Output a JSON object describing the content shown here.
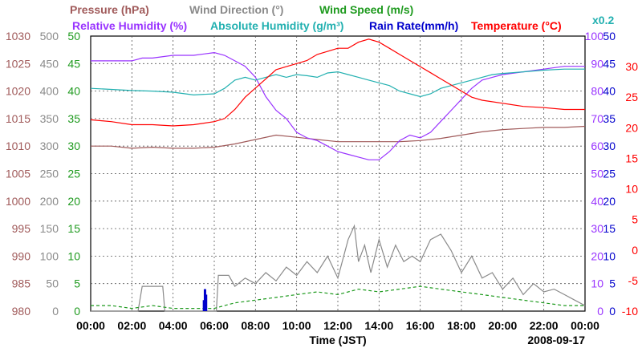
{
  "legend_top": [
    {
      "text": "Pressure (hPa)",
      "color": "#a05a5a"
    },
    {
      "text": "Wind Direction (°)",
      "color": "#8a8a8a"
    },
    {
      "text": "Wind Speed (m/s)",
      "color": "#1e9a1e"
    }
  ],
  "legend_bottom": [
    {
      "text": "Relative Humidity (%)",
      "color": "#9933ff"
    },
    {
      "text": "Absolute Humidity (g/m³)",
      "color": "#22b0b0"
    },
    {
      "text": "Rain Rate(mm/h)",
      "color": "#0000cc"
    },
    {
      "text": "Temperature (°C)",
      "color": "#ff0000"
    }
  ],
  "scale_note": {
    "text": "x0.2",
    "color": "#22b0b0"
  },
  "date": "2008-09-17",
  "chart_data": {
    "type": "line",
    "xlabel": "Time (JST)",
    "x_ticks": [
      "00:00",
      "02:00",
      "04:00",
      "06:00",
      "08:00",
      "10:00",
      "12:00",
      "14:00",
      "16:00",
      "18:00",
      "20:00",
      "22:00",
      "00:00"
    ],
    "xlim_hours": [
      0,
      24
    ],
    "grid": true,
    "axes": {
      "pressure": {
        "ticks": [
          "1030",
          "1025",
          "1020",
          "1015",
          "1010",
          "1005",
          "1000",
          "995",
          "990",
          "985",
          "980"
        ],
        "range": [
          980,
          1030
        ],
        "color": "#a05a5a"
      },
      "wind_direction": {
        "ticks": [
          "500",
          "450",
          "400",
          "350",
          "300",
          "250",
          "200",
          "150",
          "100",
          "50",
          "0"
        ],
        "range": [
          0,
          500
        ],
        "color": "#8a8a8a"
      },
      "wind_speed": {
        "ticks": [
          "50",
          "45",
          "40",
          "35",
          "30",
          "25",
          "20",
          "15",
          "10",
          "5",
          "0"
        ],
        "range": [
          0,
          50
        ],
        "color": "#1e9a1e"
      },
      "relative_humidity": {
        "ticks": [
          "100",
          "90",
          "80",
          "70",
          "60",
          "50",
          "40",
          "30",
          "20",
          "10",
          "0"
        ],
        "range": [
          0,
          100
        ],
        "color": "#9933ff"
      },
      "rain_rate": {
        "ticks": [
          "50",
          "45",
          "40",
          "35",
          "30",
          "25",
          "20",
          "15",
          "10",
          "5",
          "0"
        ],
        "range": [
          0,
          50
        ],
        "color": "#0000cc"
      },
      "temperature": {
        "ticks": [
          "30",
          "25",
          "20",
          "15",
          "10",
          "5",
          "0",
          "-5",
          "-10"
        ],
        "range": [
          -10,
          35
        ],
        "color": "#ff0000"
      }
    },
    "series": [
      {
        "name": "Pressure (hPa)",
        "axis": "pressure",
        "color": "#a05a5a",
        "points": [
          [
            0,
            1010
          ],
          [
            1,
            1010
          ],
          [
            2,
            1009.6
          ],
          [
            3,
            1009.8
          ],
          [
            4,
            1009.6
          ],
          [
            5,
            1009.6
          ],
          [
            6,
            1009.8
          ],
          [
            7,
            1010.4
          ],
          [
            8,
            1011.2
          ],
          [
            9,
            1012
          ],
          [
            10,
            1011.6
          ],
          [
            11,
            1011.2
          ],
          [
            12,
            1010.8
          ],
          [
            13,
            1010.8
          ],
          [
            14,
            1010.8
          ],
          [
            15,
            1010.8
          ],
          [
            16,
            1011
          ],
          [
            17,
            1011.4
          ],
          [
            18,
            1012
          ],
          [
            19,
            1012.6
          ],
          [
            20,
            1013
          ],
          [
            21,
            1013.2
          ],
          [
            22,
            1013.4
          ],
          [
            23,
            1013.4
          ],
          [
            24,
            1013.6
          ]
        ]
      },
      {
        "name": "Wind Direction (°)",
        "axis": "wind_direction",
        "color": "#8a8a8a",
        "points": [
          [
            0,
            0
          ],
          [
            2.3,
            0
          ],
          [
            2.5,
            45
          ],
          [
            3.2,
            45
          ],
          [
            3.5,
            45
          ],
          [
            3.6,
            0
          ],
          [
            5.8,
            0
          ],
          [
            6.1,
            0
          ],
          [
            6.2,
            65
          ],
          [
            6.7,
            65
          ],
          [
            7.0,
            45
          ],
          [
            7.5,
            60
          ],
          [
            8.0,
            50
          ],
          [
            8.5,
            70
          ],
          [
            9.0,
            55
          ],
          [
            9.5,
            80
          ],
          [
            10.0,
            65
          ],
          [
            10.5,
            90
          ],
          [
            11.0,
            70
          ],
          [
            11.5,
            100
          ],
          [
            12.0,
            60
          ],
          [
            12.5,
            130
          ],
          [
            12.8,
            155
          ],
          [
            13.0,
            90
          ],
          [
            13.3,
            120
          ],
          [
            13.6,
            70
          ],
          [
            14.0,
            130
          ],
          [
            14.4,
            80
          ],
          [
            14.8,
            120
          ],
          [
            15.2,
            90
          ],
          [
            15.6,
            100
          ],
          [
            16.0,
            90
          ],
          [
            16.5,
            130
          ],
          [
            17.0,
            140
          ],
          [
            17.5,
            110
          ],
          [
            18.0,
            70
          ],
          [
            18.5,
            100
          ],
          [
            19.0,
            60
          ],
          [
            19.5,
            70
          ],
          [
            20.0,
            40
          ],
          [
            20.5,
            60
          ],
          [
            21.0,
            30
          ],
          [
            21.5,
            50
          ],
          [
            22.0,
            35
          ],
          [
            22.5,
            40
          ],
          [
            23.0,
            30
          ],
          [
            23.5,
            20
          ],
          [
            24.0,
            10
          ]
        ]
      },
      {
        "name": "Wind Speed (m/s)",
        "axis": "wind_speed",
        "color": "#1e9a1e",
        "dashed": true,
        "points": [
          [
            0,
            1
          ],
          [
            1,
            1
          ],
          [
            2,
            0.5
          ],
          [
            3,
            1
          ],
          [
            4,
            0.5
          ],
          [
            5,
            0.5
          ],
          [
            6,
            0.5
          ],
          [
            6.5,
            1
          ],
          [
            7,
            1.5
          ],
          [
            8,
            2
          ],
          [
            9,
            2.5
          ],
          [
            10,
            3
          ],
          [
            11,
            3.5
          ],
          [
            12,
            3
          ],
          [
            13,
            4
          ],
          [
            14,
            3.5
          ],
          [
            15,
            4
          ],
          [
            16,
            4.5
          ],
          [
            17,
            4
          ],
          [
            18,
            3.5
          ],
          [
            19,
            3
          ],
          [
            20,
            2.5
          ],
          [
            21,
            2
          ],
          [
            22,
            1.5
          ],
          [
            23,
            1
          ],
          [
            24,
            1
          ]
        ]
      },
      {
        "name": "Relative Humidity (%)",
        "axis": "relative_humidity",
        "color": "#9933ff",
        "points": [
          [
            0,
            91
          ],
          [
            1,
            91
          ],
          [
            2,
            91
          ],
          [
            2.5,
            92
          ],
          [
            3,
            92
          ],
          [
            4,
            93
          ],
          [
            5,
            93
          ],
          [
            6,
            94
          ],
          [
            6.5,
            93
          ],
          [
            7,
            91
          ],
          [
            7.5,
            89
          ],
          [
            8,
            85
          ],
          [
            8.5,
            78
          ],
          [
            9,
            73
          ],
          [
            9.5,
            70
          ],
          [
            10,
            65
          ],
          [
            10.5,
            63
          ],
          [
            11,
            62
          ],
          [
            11.5,
            60
          ],
          [
            12,
            58
          ],
          [
            12.5,
            57
          ],
          [
            13,
            56
          ],
          [
            13.5,
            55
          ],
          [
            14,
            55
          ],
          [
            14.5,
            58
          ],
          [
            15,
            62
          ],
          [
            15.5,
            64
          ],
          [
            16,
            63
          ],
          [
            16.5,
            65
          ],
          [
            17,
            69
          ],
          [
            17.5,
            73
          ],
          [
            18,
            77
          ],
          [
            18.5,
            81
          ],
          [
            19,
            84
          ],
          [
            19.5,
            85
          ],
          [
            20,
            86
          ],
          [
            21,
            87
          ],
          [
            22,
            88
          ],
          [
            23,
            89
          ],
          [
            24,
            89
          ]
        ]
      },
      {
        "name": "Absolute Humidity (g/m³)",
        "axis": "wind_direction",
        "scale": 0.2,
        "color": "#22b0b0",
        "points": [
          [
            0,
            405
          ],
          [
            1,
            403
          ],
          [
            2,
            401
          ],
          [
            3,
            400
          ],
          [
            4,
            398
          ],
          [
            5,
            393
          ],
          [
            6,
            395
          ],
          [
            6.5,
            405
          ],
          [
            7,
            420
          ],
          [
            7.5,
            425
          ],
          [
            8,
            420
          ],
          [
            8.5,
            425
          ],
          [
            9,
            430
          ],
          [
            9.5,
            425
          ],
          [
            10,
            430
          ],
          [
            10.5,
            428
          ],
          [
            11,
            425
          ],
          [
            11.5,
            433
          ],
          [
            12,
            435
          ],
          [
            12.5,
            430
          ],
          [
            13,
            425
          ],
          [
            13.5,
            420
          ],
          [
            14,
            415
          ],
          [
            14.5,
            410
          ],
          [
            15,
            400
          ],
          [
            15.5,
            395
          ],
          [
            16,
            390
          ],
          [
            16.5,
            395
          ],
          [
            17,
            405
          ],
          [
            17.5,
            410
          ],
          [
            18,
            415
          ],
          [
            18.5,
            420
          ],
          [
            19,
            425
          ],
          [
            19.5,
            430
          ],
          [
            20,
            432
          ],
          [
            21,
            435
          ],
          [
            22,
            438
          ],
          [
            23,
            440
          ],
          [
            24,
            440
          ]
        ]
      },
      {
        "name": "Rain Rate(mm/h)",
        "axis": "rain_rate",
        "color": "#0000cc",
        "bars": true,
        "points": [
          [
            5.5,
            2
          ],
          [
            5.55,
            4
          ],
          [
            5.6,
            3
          ]
        ]
      },
      {
        "name": "Temperature (°C)",
        "axis": "temperature",
        "color": "#ff0000",
        "points": [
          [
            0,
            21.3
          ],
          [
            1,
            21.0
          ],
          [
            2,
            20.5
          ],
          [
            3,
            20.5
          ],
          [
            4,
            20.3
          ],
          [
            5,
            20.5
          ],
          [
            6,
            21.0
          ],
          [
            6.5,
            21.5
          ],
          [
            7,
            23
          ],
          [
            7.5,
            25
          ],
          [
            8,
            26.5
          ],
          [
            8.5,
            28
          ],
          [
            9,
            29.5
          ],
          [
            9.5,
            30
          ],
          [
            10,
            30.5
          ],
          [
            10.5,
            31
          ],
          [
            11,
            32
          ],
          [
            11.5,
            32.5
          ],
          [
            12,
            33
          ],
          [
            12.5,
            33
          ],
          [
            13,
            34
          ],
          [
            13.5,
            34.5
          ],
          [
            14,
            34
          ],
          [
            14.5,
            33
          ],
          [
            15,
            32
          ],
          [
            15.5,
            31
          ],
          [
            16,
            30
          ],
          [
            16.5,
            29
          ],
          [
            17,
            28
          ],
          [
            17.5,
            27
          ],
          [
            18,
            26
          ],
          [
            18.5,
            25
          ],
          [
            19,
            24.5
          ],
          [
            20,
            24
          ],
          [
            21,
            23.5
          ],
          [
            22,
            23.3
          ],
          [
            23,
            23
          ],
          [
            24,
            23
          ]
        ]
      }
    ]
  }
}
